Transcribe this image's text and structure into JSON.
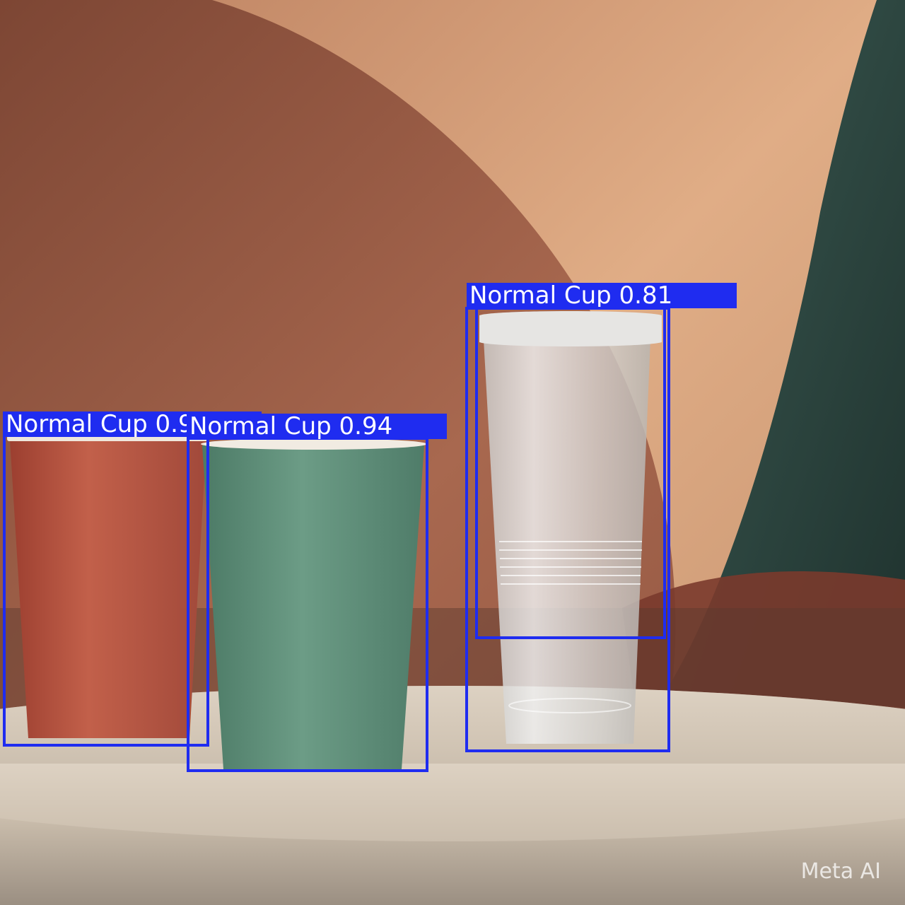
{
  "detections": [
    {
      "label": "Normal Cup 0.93",
      "class": "Normal Cup",
      "confidence": 0.93,
      "cup_color": "red"
    },
    {
      "label": "Normal Cup 0.94",
      "class": "Normal Cup",
      "confidence": 0.94,
      "cup_color": "green"
    },
    {
      "label": "Normal Cup 0.81",
      "class": "Normal Cup",
      "confidence": 0.81,
      "cup_color": "clear"
    },
    {
      "label": "",
      "class": "Normal Cup",
      "confidence": null,
      "cup_color": "clear"
    }
  ],
  "watermark": "Meta AI",
  "colors": {
    "box": "#1f2cf0",
    "label_text": "#ffffff",
    "red_cup": "#b4523f",
    "green_cup": "#5e8f79",
    "wall_left": "#9a5c45",
    "wall_right": "#d9a47c",
    "dark_teal": "#2f4a44",
    "table": "#cdbfae"
  }
}
